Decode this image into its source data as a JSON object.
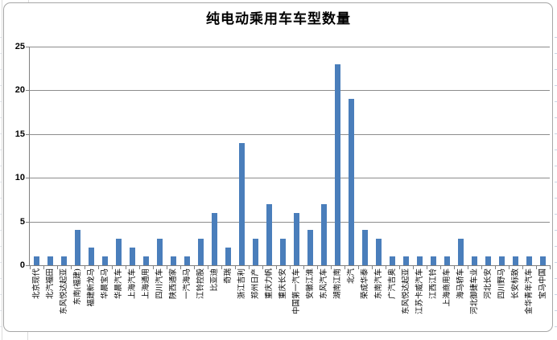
{
  "chart_data": {
    "type": "bar",
    "title": "纯电动乘用车车型数量",
    "xlabel": "",
    "ylabel": "",
    "ylim": [
      0,
      25
    ],
    "y_ticks": [
      0,
      5,
      10,
      15,
      20,
      25
    ],
    "grid": "horizontal",
    "legend": "none",
    "bar_color": "#4A7EBB",
    "axis_color": "#7F7F7F",
    "gridline_color": "#8C8C8C",
    "categories": [
      "北京现代",
      "北汽福田",
      "东风悦达起亚",
      "东南(福建)",
      "福建新龙马",
      "华晨宝马",
      "华晨汽车",
      "上海汽车",
      "上海通用",
      "四川汽车",
      "陕西通家",
      "一汽海马",
      "江铃控股",
      "比亚迪",
      "奇瑞",
      "浙江吉利",
      "郑州日产",
      "重庆力帆",
      "重庆长安",
      "中国第一汽车",
      "安徽江淮",
      "东风汽车",
      "湖南江南",
      "北汽",
      "荣成华泰",
      "东南汽车",
      "广汽吉奥",
      "东风悦达起亚",
      "江苏卡威汽车",
      "江西江铃",
      "上海商用车",
      "海马轿车",
      "河北御捷车业",
      "河北长安",
      "四川野马",
      "长安标致",
      "金华青年汽车",
      "宝马中国"
    ],
    "values": [
      1,
      1,
      1,
      4,
      2,
      1,
      3,
      2,
      1,
      3,
      1,
      1,
      3,
      6,
      2,
      14,
      3,
      7,
      3,
      6,
      4,
      7,
      23,
      19,
      4,
      3,
      1,
      1,
      1,
      1,
      1,
      3,
      1,
      1,
      1,
      1,
      1,
      1
    ]
  }
}
